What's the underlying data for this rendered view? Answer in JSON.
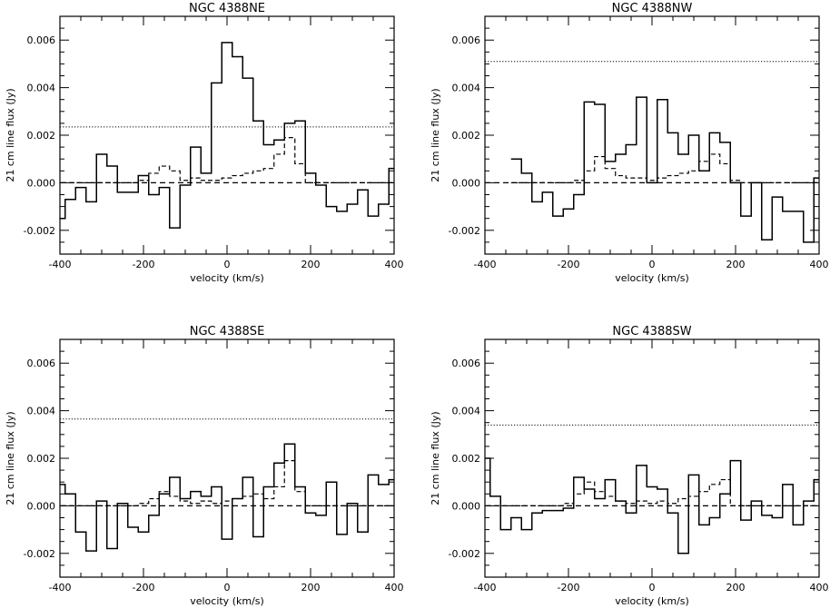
{
  "chart_data": [
    {
      "type": "line",
      "title": "NGC 4388NE",
      "xlabel": "velocity (km/s)",
      "ylabel": "21 cm line flux (Jy)",
      "xlim": [
        -400,
        400
      ],
      "ylim": [
        -0.003,
        0.007
      ],
      "xticks": [
        -400,
        -200,
        0,
        200,
        400
      ],
      "xtick_labels": [
        "-400",
        "-200",
        "0",
        "200",
        "400"
      ],
      "yticks": [
        -0.002,
        0.0,
        0.002,
        0.004,
        0.006
      ],
      "ytick_labels": [
        "-0.002",
        "0.000",
        "0.002",
        "0.004",
        "0.006"
      ],
      "threshold": 0.00235,
      "baseline": 0.0,
      "series": [
        {
          "style": "solid-step",
          "x": [
            -400,
            -375,
            -350,
            -325,
            -300,
            -275,
            -250,
            -225,
            -200,
            -175,
            -150,
            -125,
            -100,
            -75,
            -50,
            -25,
            0,
            25,
            50,
            75,
            100,
            125,
            150,
            175,
            200,
            225,
            250,
            275,
            300,
            325,
            350,
            375,
            400
          ],
          "y": [
            -0.0015,
            -0.0007,
            -0.0002,
            -0.0008,
            0.0012,
            0.0007,
            -0.0004,
            -0.0004,
            0.0003,
            -0.0005,
            -0.0002,
            -0.0019,
            -0.0001,
            0.0015,
            0.0004,
            0.0042,
            0.0059,
            0.0053,
            0.0044,
            0.0026,
            0.0016,
            0.0018,
            0.0025,
            0.0026,
            0.0004,
            -0.0001,
            -0.001,
            -0.0012,
            -0.0009,
            -0.0003,
            -0.0014,
            -0.0009,
            0.0006
          ]
        },
        {
          "style": "dashed-step",
          "x": [
            -400,
            -375,
            -350,
            -325,
            -300,
            -275,
            -250,
            -225,
            -200,
            -175,
            -150,
            -125,
            -100,
            -75,
            -50,
            -25,
            0,
            25,
            50,
            75,
            100,
            125,
            150,
            175,
            200,
            225,
            250,
            275,
            300,
            325,
            350,
            375,
            400
          ],
          "y": [
            0,
            0,
            0,
            0,
            0,
            0,
            0,
            0,
            0.0001,
            0.0004,
            0.0007,
            0.0005,
            0.0001,
            0.0002,
            0.0001,
            0.0001,
            0.0002,
            0.0003,
            0.0004,
            0.0005,
            0.0006,
            0.0012,
            0.0019,
            0.0008,
            0,
            0,
            0,
            0,
            0,
            0,
            0,
            0,
            0
          ]
        }
      ]
    },
    {
      "type": "line",
      "title": "NGC 4388NW",
      "xlabel": "velocity (km/s)",
      "ylabel": "21 cm line flux (Jy)",
      "xlim": [
        -400,
        400
      ],
      "ylim": [
        -0.003,
        0.007
      ],
      "xticks": [
        -400,
        -200,
        0,
        200,
        400
      ],
      "xtick_labels": [
        "-400",
        "-200",
        "0",
        "200",
        "400"
      ],
      "yticks": [
        -0.002,
        0.0,
        0.002,
        0.004,
        0.006
      ],
      "ytick_labels": [
        "-0.002",
        "0.000",
        "0.002",
        "0.004",
        "0.006"
      ],
      "threshold": 0.0051,
      "baseline": 0.0,
      "series": [
        {
          "style": "solid-step",
          "x": [
            -325,
            -300,
            -275,
            -250,
            -225,
            -200,
            -175,
            -150,
            -125,
            -100,
            -75,
            -50,
            -25,
            0,
            25,
            50,
            75,
            100,
            125,
            150,
            175,
            200,
            225,
            250,
            275,
            300,
            325,
            350,
            375,
            400
          ],
          "y": [
            0.001,
            0.0004,
            -0.0008,
            -0.0004,
            -0.0014,
            -0.0011,
            -0.0005,
            0.0034,
            0.0033,
            0.0009,
            0.0012,
            0.0016,
            0.0036,
            0.0,
            0.0035,
            0.0021,
            0.0012,
            0.002,
            0.0005,
            0.0021,
            0.0017,
            0.0,
            -0.0014,
            0.0,
            -0.0024,
            -0.0006,
            -0.0012,
            -0.0012,
            -0.0025,
            0.0002
          ]
        },
        {
          "style": "dashed-step",
          "x": [
            -325,
            -300,
            -275,
            -250,
            -225,
            -200,
            -175,
            -150,
            -125,
            -100,
            -75,
            -50,
            -25,
            0,
            25,
            50,
            75,
            100,
            125,
            150,
            175,
            200,
            225,
            250,
            275,
            300,
            325,
            350,
            375,
            400
          ],
          "y": [
            0,
            0,
            0,
            0,
            0,
            0,
            0.0001,
            0.0005,
            0.0011,
            0.0006,
            0.0003,
            0.0002,
            0.0002,
            0.0001,
            0.0002,
            0.0003,
            0.0004,
            0.0005,
            0.0009,
            0.0012,
            0.0008,
            0.0001,
            0,
            0,
            0,
            0,
            0,
            0,
            0,
            0
          ]
        }
      ]
    },
    {
      "type": "line",
      "title": "NGC 4388SE",
      "xlabel": "velocity (km/s)",
      "ylabel": "21 cm line flux (Jy)",
      "xlim": [
        -400,
        400
      ],
      "ylim": [
        -0.003,
        0.007
      ],
      "xticks": [
        -400,
        -200,
        0,
        200,
        400
      ],
      "xtick_labels": [
        "-400",
        "-200",
        "0",
        "200",
        "400"
      ],
      "yticks": [
        -0.002,
        0.0,
        0.002,
        0.004,
        0.006
      ],
      "ytick_labels": [
        "-0.002",
        "0.000",
        "0.002",
        "0.004",
        "0.006"
      ],
      "threshold": 0.00365,
      "baseline": 0.0,
      "series": [
        {
          "style": "solid-step",
          "x": [
            -400,
            -375,
            -350,
            -325,
            -300,
            -275,
            -250,
            -225,
            -200,
            -175,
            -150,
            -125,
            -100,
            -75,
            -50,
            -25,
            0,
            25,
            50,
            75,
            100,
            125,
            150,
            175,
            200,
            225,
            250,
            275,
            300,
            325,
            350,
            375,
            400
          ],
          "y": [
            0.0009,
            0.0005,
            -0.0011,
            -0.0019,
            0.0002,
            -0.0018,
            0.0001,
            -0.0009,
            -0.0011,
            -0.0004,
            0.0005,
            0.0012,
            0.0003,
            0.0006,
            0.0004,
            0.0008,
            -0.0014,
            0.0003,
            0.0012,
            -0.0013,
            0.0008,
            0.0018,
            0.0026,
            0.0008,
            -0.0003,
            -0.0004,
            0.001,
            -0.0012,
            0.0001,
            -0.0011,
            0.0013,
            0.0009,
            0.0011
          ]
        },
        {
          "style": "dashed-step",
          "x": [
            -400,
            -375,
            -350,
            -325,
            -300,
            -275,
            -250,
            -225,
            -200,
            -175,
            -150,
            -125,
            -100,
            -75,
            -50,
            -25,
            0,
            25,
            50,
            75,
            100,
            125,
            150,
            175,
            200,
            225,
            250,
            275,
            300,
            325,
            350,
            375,
            400
          ],
          "y": [
            0,
            0,
            0,
            0,
            0,
            0,
            0,
            0,
            0.0001,
            0.0003,
            0.0006,
            0.0004,
            0.0002,
            0.0001,
            0.0002,
            0.0001,
            0.0002,
            0.0003,
            0.0004,
            0.0005,
            0.0003,
            0.0008,
            0.0019,
            0.0006,
            0,
            0,
            0,
            0,
            0,
            0,
            0,
            0,
            0
          ]
        }
      ]
    },
    {
      "type": "line",
      "title": "NGC 4388SW",
      "xlabel": "velocity (km/s)",
      "ylabel": "21 cm line flux (Jy)",
      "xlim": [
        -400,
        400
      ],
      "ylim": [
        -0.003,
        0.007
      ],
      "xticks": [
        -400,
        -200,
        0,
        200,
        400
      ],
      "xtick_labels": [
        "-400",
        "-200",
        "0",
        "200",
        "400"
      ],
      "yticks": [
        -0.002,
        0.0,
        0.002,
        0.004,
        0.006
      ],
      "ytick_labels": [
        "-0.002",
        "0.000",
        "0.002",
        "0.004",
        "0.006"
      ],
      "threshold": 0.0034,
      "baseline": 0.0,
      "series": [
        {
          "style": "solid-step",
          "x": [
            -400,
            -375,
            -350,
            -325,
            -300,
            -275,
            -250,
            -225,
            -200,
            -175,
            -150,
            -125,
            -100,
            -75,
            -50,
            -25,
            0,
            25,
            50,
            75,
            100,
            125,
            150,
            175,
            200,
            225,
            250,
            275,
            300,
            325,
            350,
            375,
            400
          ],
          "y": [
            0.002,
            0.0004,
            -0.001,
            -0.0005,
            -0.001,
            -0.0003,
            -0.0002,
            -0.0002,
            -0.0001,
            0.0012,
            0.0007,
            0.0003,
            0.0011,
            0.0002,
            -0.0003,
            0.0017,
            0.0008,
            0.0007,
            -0.0003,
            -0.002,
            0.0013,
            -0.0008,
            -0.0005,
            0.0005,
            0.0019,
            -0.0006,
            0.0002,
            -0.0004,
            -0.0005,
            0.0009,
            -0.0008,
            0.0002,
            0.0011
          ]
        },
        {
          "style": "dashed-step",
          "x": [
            -400,
            -375,
            -350,
            -325,
            -300,
            -275,
            -250,
            -225,
            -200,
            -175,
            -150,
            -125,
            -100,
            -75,
            -50,
            -25,
            0,
            25,
            50,
            75,
            100,
            125,
            150,
            175,
            200,
            225,
            250,
            275,
            300,
            325,
            350,
            375,
            400
          ],
          "y": [
            0,
            0,
            0,
            0,
            0,
            0,
            0,
            0,
            0.0001,
            0.0005,
            0.001,
            0.0006,
            0.0004,
            0.0002,
            0.0001,
            0.0002,
            0.0001,
            0.0002,
            0.0001,
            0.0003,
            0.0004,
            0.0006,
            0.0009,
            0.0011,
            0,
            0,
            0,
            0,
            0,
            0,
            0,
            0,
            0
          ]
        }
      ]
    }
  ]
}
